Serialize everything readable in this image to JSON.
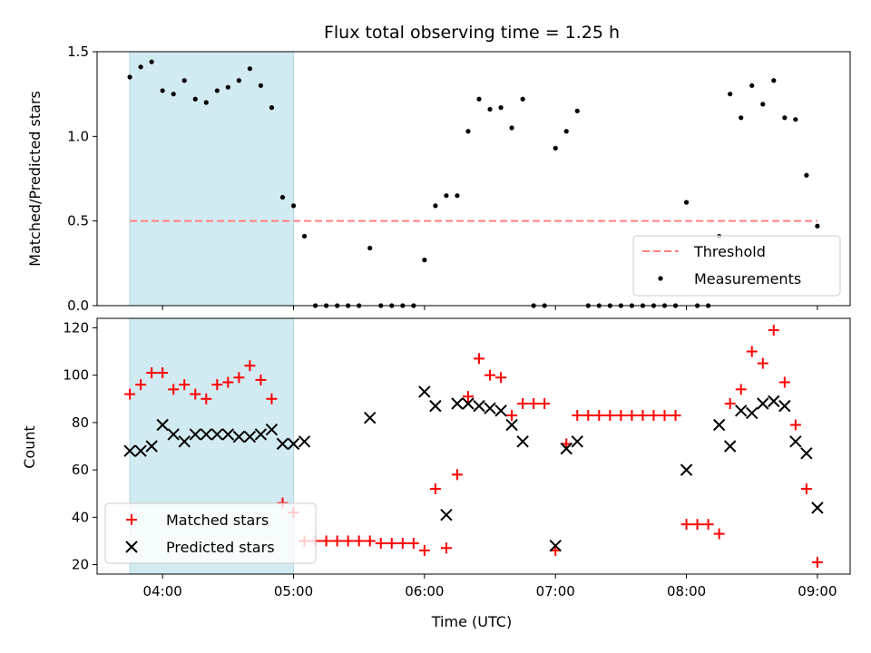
{
  "title": "Flux total observing time = 1.25 h",
  "chart_data": [
    {
      "type": "scatter",
      "ylabel": "Matched/Predicted stars",
      "xlim": [
        "03:30",
        "09:15"
      ],
      "ylim": [
        0,
        1.5
      ],
      "x_ticks": [
        "04:00",
        "05:00",
        "06:00",
        "07:00",
        "08:00",
        "09:00"
      ],
      "y_ticks": [
        "0.0",
        "0.5",
        "1.0",
        "1.5"
      ],
      "shaded_span": [
        "03:45",
        "05:00"
      ],
      "shade_color": "#add8e6",
      "threshold": {
        "label": "Threshold",
        "value": 0.5,
        "x": [
          "03:45",
          "09:00"
        ],
        "color": "#ff7f7f"
      },
      "legend_position": "lower-right",
      "series": [
        {
          "name": "Measurements",
          "color": "#000000",
          "points": [
            [
              "03:45",
              1.35
            ],
            [
              "03:50",
              1.41
            ],
            [
              "03:55",
              1.44
            ],
            [
              "04:00",
              1.27
            ],
            [
              "04:05",
              1.25
            ],
            [
              "04:10",
              1.33
            ],
            [
              "04:15",
              1.22
            ],
            [
              "04:20",
              1.2
            ],
            [
              "04:25",
              1.27
            ],
            [
              "04:30",
              1.29
            ],
            [
              "04:35",
              1.33
            ],
            [
              "04:40",
              1.4
            ],
            [
              "04:45",
              1.3
            ],
            [
              "04:50",
              1.17
            ],
            [
              "04:55",
              0.64
            ],
            [
              "05:00",
              0.59
            ],
            [
              "05:05",
              0.41
            ],
            [
              "05:10",
              0.0
            ],
            [
              "05:15",
              0.0
            ],
            [
              "05:20",
              0.0
            ],
            [
              "05:25",
              0.0
            ],
            [
              "05:30",
              0.0
            ],
            [
              "05:35",
              0.34
            ],
            [
              "05:40",
              0.0
            ],
            [
              "05:45",
              0.0
            ],
            [
              "05:50",
              0.0
            ],
            [
              "05:55",
              0.0
            ],
            [
              "06:00",
              0.27
            ],
            [
              "06:05",
              0.59
            ],
            [
              "06:10",
              0.65
            ],
            [
              "06:15",
              0.65
            ],
            [
              "06:20",
              1.03
            ],
            [
              "06:25",
              1.22
            ],
            [
              "06:30",
              1.16
            ],
            [
              "06:35",
              1.17
            ],
            [
              "06:40",
              1.05
            ],
            [
              "06:45",
              1.22
            ],
            [
              "06:50",
              0.0
            ],
            [
              "06:55",
              0.0
            ],
            [
              "07:00",
              0.93
            ],
            [
              "07:05",
              1.03
            ],
            [
              "07:10",
              1.15
            ],
            [
              "07:15",
              0.0
            ],
            [
              "07:20",
              0.0
            ],
            [
              "07:25",
              0.0
            ],
            [
              "07:30",
              0.0
            ],
            [
              "07:35",
              0.0
            ],
            [
              "07:40",
              0.0
            ],
            [
              "07:45",
              0.0
            ],
            [
              "07:50",
              0.0
            ],
            [
              "07:55",
              0.0
            ],
            [
              "08:00",
              0.61
            ],
            [
              "08:05",
              0.0
            ],
            [
              "08:10",
              0.0
            ],
            [
              "08:15",
              0.41
            ],
            [
              "08:20",
              1.25
            ],
            [
              "08:25",
              1.11
            ],
            [
              "08:30",
              1.3
            ],
            [
              "08:35",
              1.19
            ],
            [
              "08:40",
              1.33
            ],
            [
              "08:45",
              1.11
            ],
            [
              "08:50",
              1.1
            ],
            [
              "08:55",
              0.77
            ],
            [
              "09:00",
              0.47
            ]
          ]
        }
      ]
    },
    {
      "type": "scatter",
      "xlabel": "Time (UTC)",
      "ylabel": "Count",
      "xlim": [
        "03:30",
        "09:15"
      ],
      "ylim": [
        16,
        124
      ],
      "x_ticks": [
        "04:00",
        "05:00",
        "06:00",
        "07:00",
        "08:00",
        "09:00"
      ],
      "y_ticks": [
        "20",
        "40",
        "60",
        "80",
        "100",
        "120"
      ],
      "shaded_span": [
        "03:45",
        "05:00"
      ],
      "shade_color": "#add8e6",
      "legend_position": "lower-left",
      "series": [
        {
          "name": "Matched stars",
          "marker": "plus",
          "color": "#ff0000",
          "points": [
            [
              "03:45",
              92
            ],
            [
              "03:50",
              96
            ],
            [
              "03:55",
              101
            ],
            [
              "04:00",
              101
            ],
            [
              "04:05",
              94
            ],
            [
              "04:10",
              96
            ],
            [
              "04:15",
              92
            ],
            [
              "04:20",
              90
            ],
            [
              "04:25",
              96
            ],
            [
              "04:30",
              97
            ],
            [
              "04:35",
              99
            ],
            [
              "04:40",
              104
            ],
            [
              "04:45",
              98
            ],
            [
              "04:50",
              90
            ],
            [
              "04:55",
              46
            ],
            [
              "05:00",
              42
            ],
            [
              "05:05",
              30
            ],
            [
              "05:10",
              30
            ],
            [
              "05:15",
              30
            ],
            [
              "05:20",
              30
            ],
            [
              "05:25",
              30
            ],
            [
              "05:30",
              30
            ],
            [
              "05:35",
              30
            ],
            [
              "05:40",
              29
            ],
            [
              "05:45",
              29
            ],
            [
              "05:50",
              29
            ],
            [
              "05:55",
              29
            ],
            [
              "06:00",
              26
            ],
            [
              "06:05",
              52
            ],
            [
              "06:10",
              27
            ],
            [
              "06:15",
              58
            ],
            [
              "06:20",
              91
            ],
            [
              "06:25",
              107
            ],
            [
              "06:30",
              100
            ],
            [
              "06:35",
              99
            ],
            [
              "06:40",
              83
            ],
            [
              "06:45",
              88
            ],
            [
              "06:50",
              88
            ],
            [
              "06:55",
              88
            ],
            [
              "07:00",
              26
            ],
            [
              "07:05",
              71
            ],
            [
              "07:10",
              83
            ],
            [
              "07:15",
              83
            ],
            [
              "07:20",
              83
            ],
            [
              "07:25",
              83
            ],
            [
              "07:30",
              83
            ],
            [
              "07:35",
              83
            ],
            [
              "07:40",
              83
            ],
            [
              "07:45",
              83
            ],
            [
              "07:50",
              83
            ],
            [
              "07:55",
              83
            ],
            [
              "08:00",
              37
            ],
            [
              "08:05",
              37
            ],
            [
              "08:10",
              37
            ],
            [
              "08:15",
              33
            ],
            [
              "08:20",
              88
            ],
            [
              "08:25",
              94
            ],
            [
              "08:30",
              110
            ],
            [
              "08:35",
              105
            ],
            [
              "08:40",
              119
            ],
            [
              "08:45",
              97
            ],
            [
              "08:50",
              79
            ],
            [
              "08:55",
              52
            ],
            [
              "09:00",
              21
            ]
          ]
        },
        {
          "name": "Predicted stars",
          "marker": "x",
          "color": "#000000",
          "points": [
            [
              "03:45",
              68
            ],
            [
              "03:50",
              68
            ],
            [
              "03:55",
              70
            ],
            [
              "04:00",
              79
            ],
            [
              "04:05",
              75
            ],
            [
              "04:10",
              72
            ],
            [
              "04:15",
              75
            ],
            [
              "04:20",
              75
            ],
            [
              "04:25",
              75
            ],
            [
              "04:30",
              75
            ],
            [
              "04:35",
              74
            ],
            [
              "04:40",
              74
            ],
            [
              "04:45",
              75
            ],
            [
              "04:50",
              77
            ],
            [
              "04:55",
              71
            ],
            [
              "05:00",
              71
            ],
            [
              "05:05",
              72
            ],
            [
              "05:35",
              82
            ],
            [
              "06:00",
              93
            ],
            [
              "06:05",
              87
            ],
            [
              "06:10",
              41
            ],
            [
              "06:15",
              88
            ],
            [
              "06:20",
              88
            ],
            [
              "06:25",
              87
            ],
            [
              "06:30",
              86
            ],
            [
              "06:35",
              85
            ],
            [
              "06:40",
              79
            ],
            [
              "06:45",
              72
            ],
            [
              "07:00",
              28
            ],
            [
              "07:05",
              69
            ],
            [
              "07:10",
              72
            ],
            [
              "08:00",
              60
            ],
            [
              "08:15",
              79
            ],
            [
              "08:20",
              70
            ],
            [
              "08:25",
              85
            ],
            [
              "08:30",
              84
            ],
            [
              "08:35",
              88
            ],
            [
              "08:40",
              89
            ],
            [
              "08:45",
              87
            ],
            [
              "08:50",
              72
            ],
            [
              "08:55",
              67
            ],
            [
              "09:00",
              44
            ]
          ]
        }
      ]
    }
  ]
}
